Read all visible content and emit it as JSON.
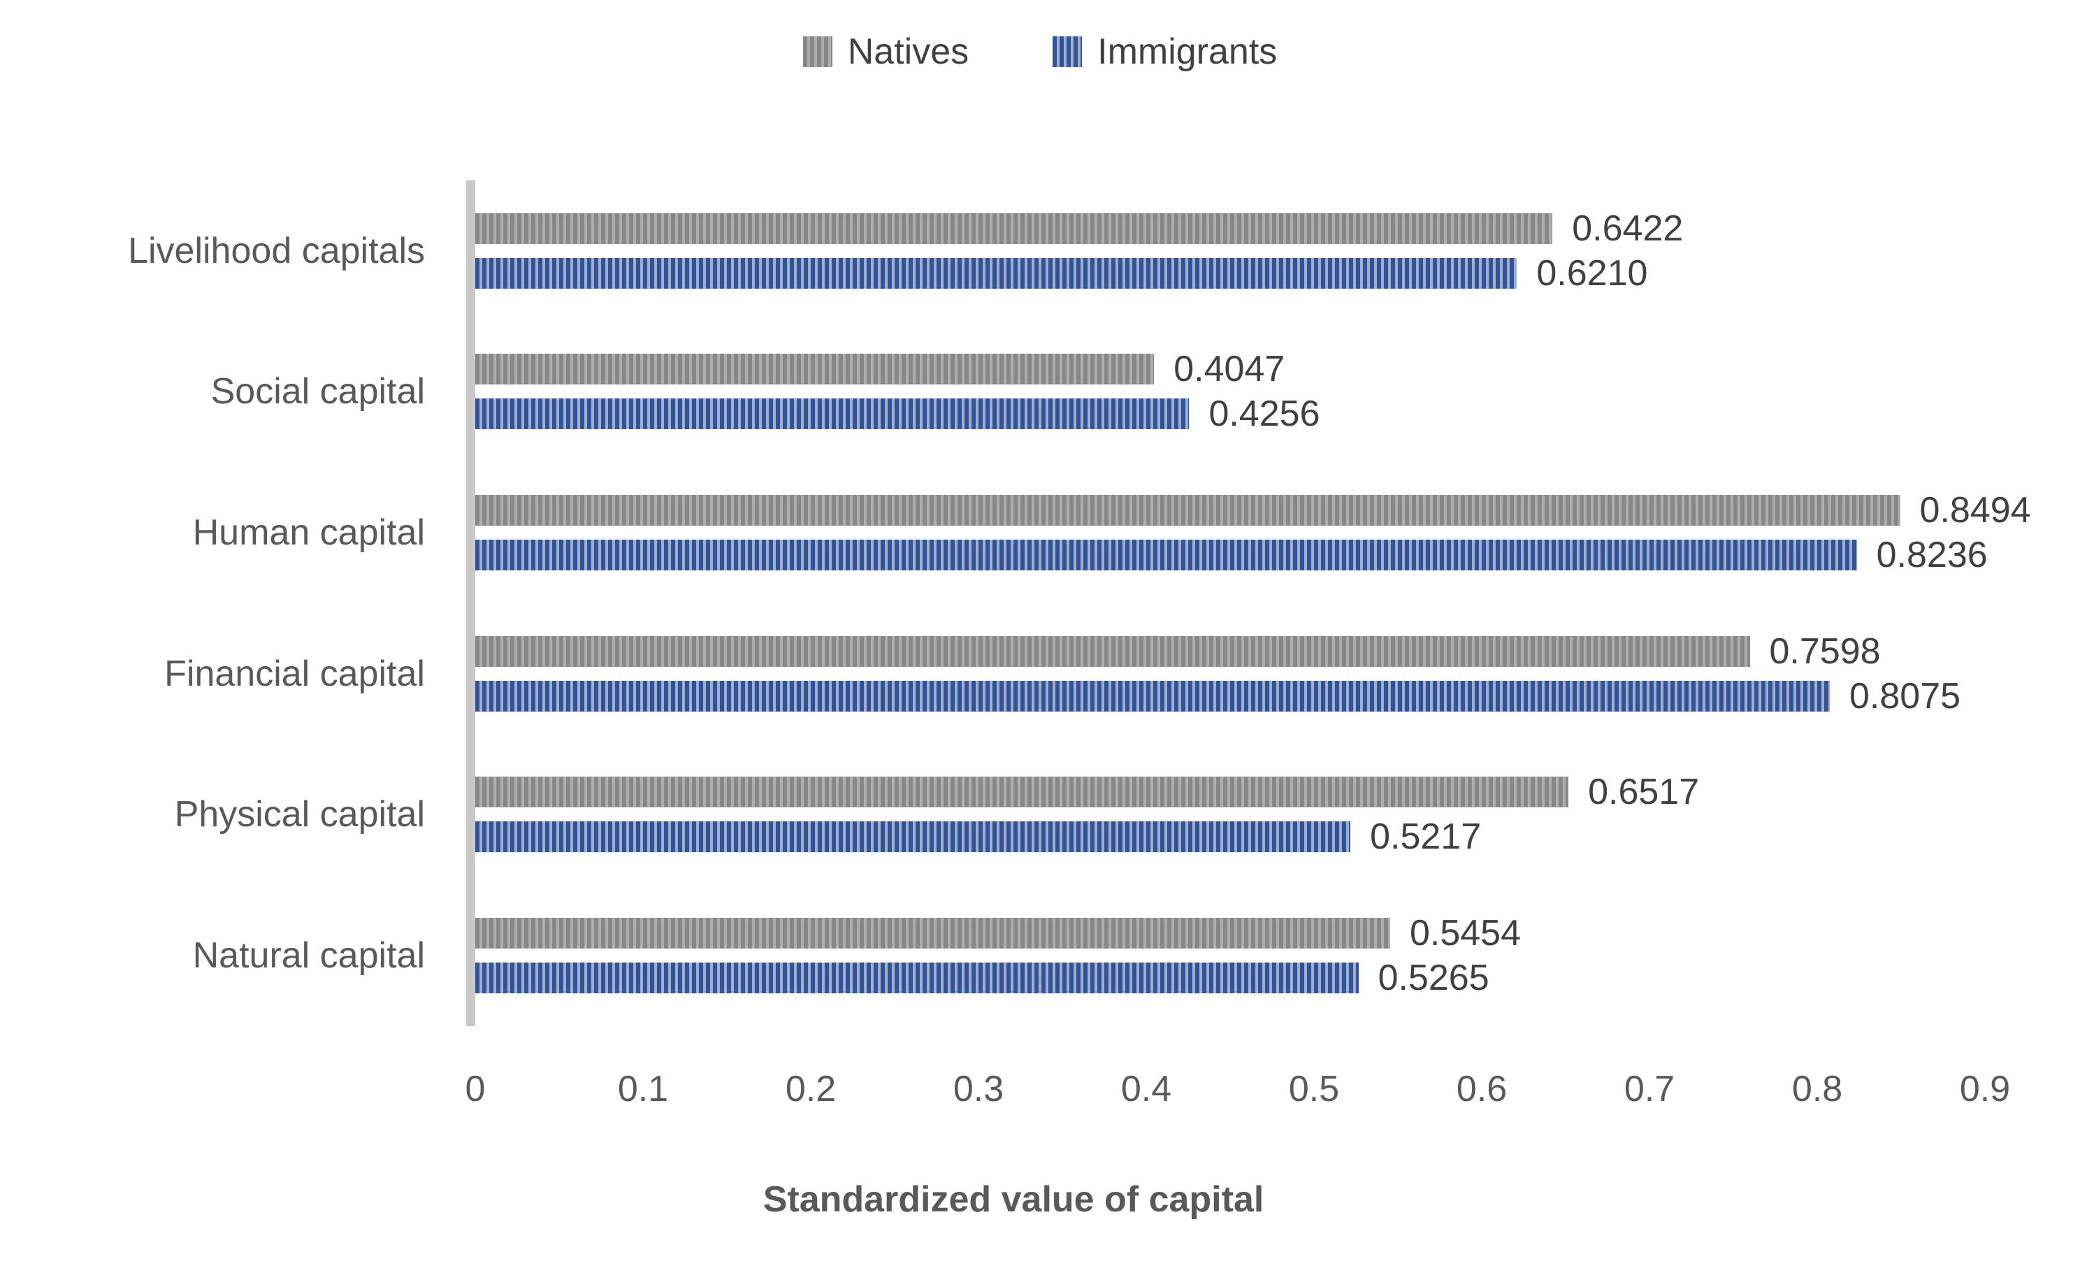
{
  "chart_data": {
    "type": "bar",
    "orientation": "horizontal",
    "title": "",
    "xlabel": "Standardized value of capital",
    "ylabel": "",
    "categories": [
      "Livelihood capitals",
      "Social capital",
      "Human capital",
      "Financial capital",
      "Physical capital",
      "Natural capital"
    ],
    "series": [
      {
        "name": "Natives",
        "values": [
          0.6422,
          0.4047,
          0.8494,
          0.7598,
          0.6517,
          0.5454
        ],
        "labels": [
          "0.6422",
          "0.4047",
          "0.8494",
          "0.7598",
          "0.6517",
          "0.5454"
        ],
        "stripe_dark": "#878787",
        "stripe_light": "#ADADAD",
        "pattern": "vertical-stripes"
      },
      {
        "name": "Immigrants",
        "values": [
          0.621,
          0.4256,
          0.8236,
          0.8075,
          0.5217,
          0.5265
        ],
        "labels": [
          "0.6210",
          "0.4256",
          "0.8236",
          "0.8075",
          "0.5217",
          "0.5265"
        ],
        "stripe_dark": "#30549B",
        "stripe_light": "#A2ADCA",
        "pattern": "vertical-stripes"
      }
    ],
    "xticks": [
      0,
      0.1,
      0.2,
      0.3,
      0.4,
      0.5,
      0.6,
      0.7,
      0.8,
      0.9
    ],
    "xtick_labels": [
      "0",
      "0.1",
      "0.2",
      "0.3",
      "0.4",
      "0.5",
      "0.6",
      "0.7",
      "0.8",
      "0.9"
    ],
    "xlim": [
      0,
      0.9
    ],
    "grid": false,
    "legend_position": "top",
    "value_labels": true
  },
  "colors": {
    "background": "#FFFFFF",
    "axis_line": "#C9C9C9",
    "tick_label_text": "#595959",
    "category_label_text": "#595959",
    "value_label_text": "#404040",
    "legend_text": "#404040",
    "axis_title_text": "#595959"
  }
}
